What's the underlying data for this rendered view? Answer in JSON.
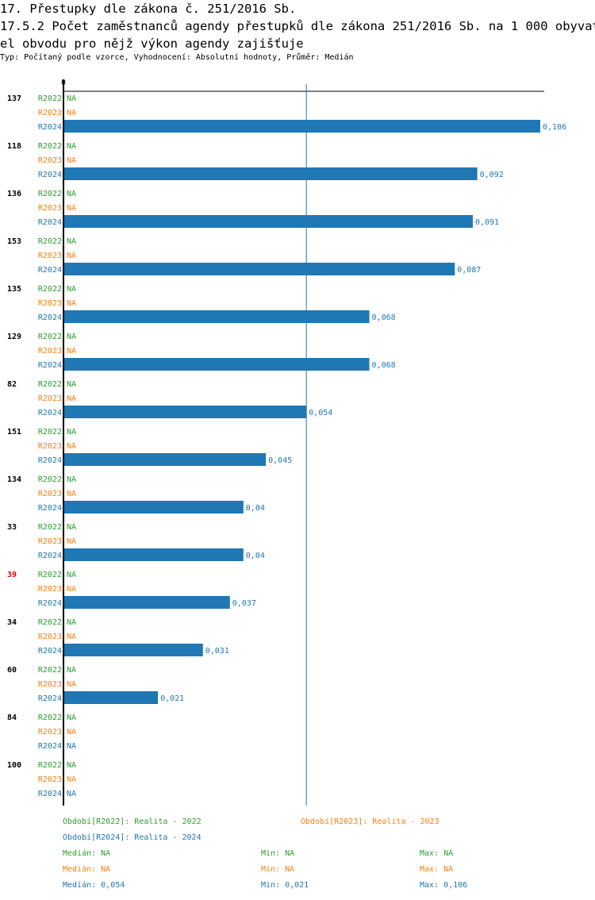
{
  "header": {
    "title": "17. Přestupky dle zákona č. 251/2016 Sb.",
    "subtitle_line1": "17.5.2 Počet zaměstnanců agendy přestupků dle zákona 251/2016 Sb. na 1 000 obyvat",
    "subtitle_line2": "el obvodu pro nějž výkon agendy zajišťuje",
    "meta": "Typ: Počítaný podle vzorce, Vyhodnocení: Absolutní hodnoty, Průměr: Medián"
  },
  "colors": {
    "R2022": "#2ca02c",
    "R2023": "#ff7f0e",
    "R2024": "#1f77b4",
    "highlight": "#e00000"
  },
  "chart_data": {
    "type": "bar",
    "orientation": "horizontal",
    "axis_zero_label": "0",
    "xlim": [
      0,
      0.106
    ],
    "median_line": 0.054,
    "series_names": [
      "R2022",
      "R2023",
      "R2024"
    ],
    "na_label": "NA",
    "categories": [
      "137",
      "118",
      "136",
      "153",
      "135",
      "129",
      "82",
      "151",
      "134",
      "33",
      "39",
      "34",
      "60",
      "84",
      "100"
    ],
    "highlighted_category": "39",
    "series": [
      {
        "name": "R2022",
        "values": [
          null,
          null,
          null,
          null,
          null,
          null,
          null,
          null,
          null,
          null,
          null,
          null,
          null,
          null,
          null
        ]
      },
      {
        "name": "R2023",
        "values": [
          null,
          null,
          null,
          null,
          null,
          null,
          null,
          null,
          null,
          null,
          null,
          null,
          null,
          null,
          null
        ]
      },
      {
        "name": "R2024",
        "values": [
          0.106,
          0.092,
          0.091,
          0.087,
          0.068,
          0.068,
          0.054,
          0.045,
          0.04,
          0.04,
          0.037,
          0.031,
          0.021,
          null,
          null
        ],
        "labels": [
          "0,106",
          "0,092",
          "0,091",
          "0,087",
          "0,068",
          "0,068",
          "0,054",
          "0,045",
          "0,04",
          "0,04",
          "0,037",
          "0,031",
          "0,021",
          "NA",
          "NA"
        ]
      }
    ]
  },
  "legend": {
    "r2022": "Období[R2022]: Realita - 2022",
    "r2023": "Období[R2023]: Realita - 2023",
    "r2024": "Období[R2024]: Realita - 2024"
  },
  "stats": [
    {
      "median": "Medián: NA",
      "min": "Min: NA",
      "max": "Max: NA"
    },
    {
      "median": "Medián: NA",
      "min": "Min: NA",
      "max": "Max: NA"
    },
    {
      "median": "Medián: 0,054",
      "min": "Min: 0,021",
      "max": "Max: 0,106"
    }
  ]
}
